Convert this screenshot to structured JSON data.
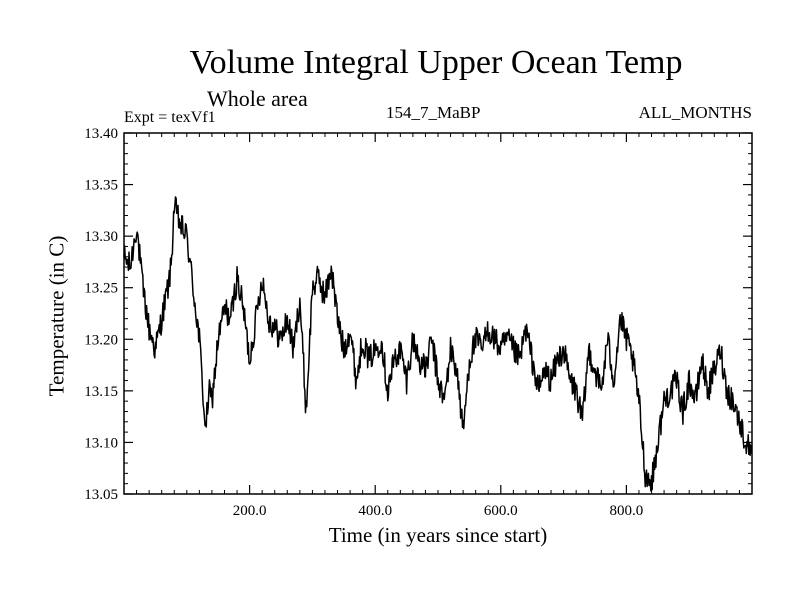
{
  "chart_data": {
    "type": "line",
    "title": "Volume Integral Upper Ocean Temp",
    "subtitle": "Whole area",
    "experiment_label": "Expt = texVf1",
    "period_label": "154_7_MaBP",
    "months_label": "ALL_MONTHS",
    "xlabel": "Time (in years since start)",
    "ylabel": "Temperature (in C)",
    "xlim": [
      0,
      1000
    ],
    "ylim": [
      13.05,
      13.4
    ],
    "x_ticks": [
      200,
      400,
      600,
      800
    ],
    "x_tick_labels": [
      "200.0",
      "400.0",
      "600.0",
      "800.0"
    ],
    "y_ticks": [
      13.05,
      13.1,
      13.15,
      13.2,
      13.25,
      13.3,
      13.35,
      13.4
    ],
    "y_tick_labels": [
      "13.05",
      "13.10",
      "13.15",
      "13.20",
      "13.25",
      "13.30",
      "13.35",
      "13.40"
    ],
    "grid": false,
    "series": [
      {
        "name": "texVf1",
        "color": "#000000",
        "x": [
          0,
          10,
          20,
          30,
          40,
          50,
          60,
          70,
          75,
          80,
          90,
          100,
          110,
          120,
          130,
          135,
          140,
          150,
          160,
          170,
          180,
          190,
          200,
          210,
          220,
          230,
          240,
          250,
          260,
          270,
          280,
          290,
          300,
          310,
          320,
          330,
          340,
          350,
          360,
          370,
          380,
          390,
          400,
          410,
          420,
          430,
          440,
          450,
          460,
          470,
          480,
          490,
          500,
          510,
          520,
          530,
          540,
          550,
          560,
          570,
          580,
          590,
          600,
          610,
          620,
          630,
          640,
          650,
          660,
          670,
          680,
          690,
          700,
          710,
          720,
          730,
          740,
          750,
          760,
          770,
          780,
          790,
          800,
          810,
          820,
          830,
          840,
          850,
          860,
          870,
          880,
          890,
          900,
          910,
          920,
          930,
          940,
          950,
          960,
          970,
          980,
          990,
          1000
        ],
        "values": [
          13.28,
          13.27,
          13.31,
          13.25,
          13.21,
          13.19,
          13.22,
          13.25,
          13.27,
          13.33,
          13.31,
          13.3,
          13.25,
          13.2,
          13.11,
          13.15,
          13.14,
          13.2,
          13.23,
          13.22,
          13.26,
          13.23,
          13.18,
          13.22,
          13.26,
          13.22,
          13.21,
          13.2,
          13.22,
          13.19,
          13.24,
          13.13,
          13.25,
          13.26,
          13.24,
          13.27,
          13.22,
          13.19,
          13.21,
          13.16,
          13.2,
          13.18,
          13.19,
          13.2,
          13.15,
          13.18,
          13.19,
          13.16,
          13.2,
          13.18,
          13.17,
          13.2,
          13.16,
          13.14,
          13.19,
          13.17,
          13.11,
          13.18,
          13.2,
          13.19,
          13.21,
          13.2,
          13.19,
          13.2,
          13.19,
          13.18,
          13.21,
          13.18,
          13.15,
          13.17,
          13.16,
          13.18,
          13.19,
          13.16,
          13.15,
          13.12,
          13.19,
          13.17,
          13.15,
          13.2,
          13.16,
          13.22,
          13.2,
          13.18,
          13.14,
          13.07,
          13.06,
          13.1,
          13.14,
          13.15,
          13.16,
          13.13,
          13.16,
          13.14,
          13.18,
          13.15,
          13.17,
          13.19,
          13.15,
          13.14,
          13.12,
          13.1,
          13.09
        ]
      }
    ]
  }
}
